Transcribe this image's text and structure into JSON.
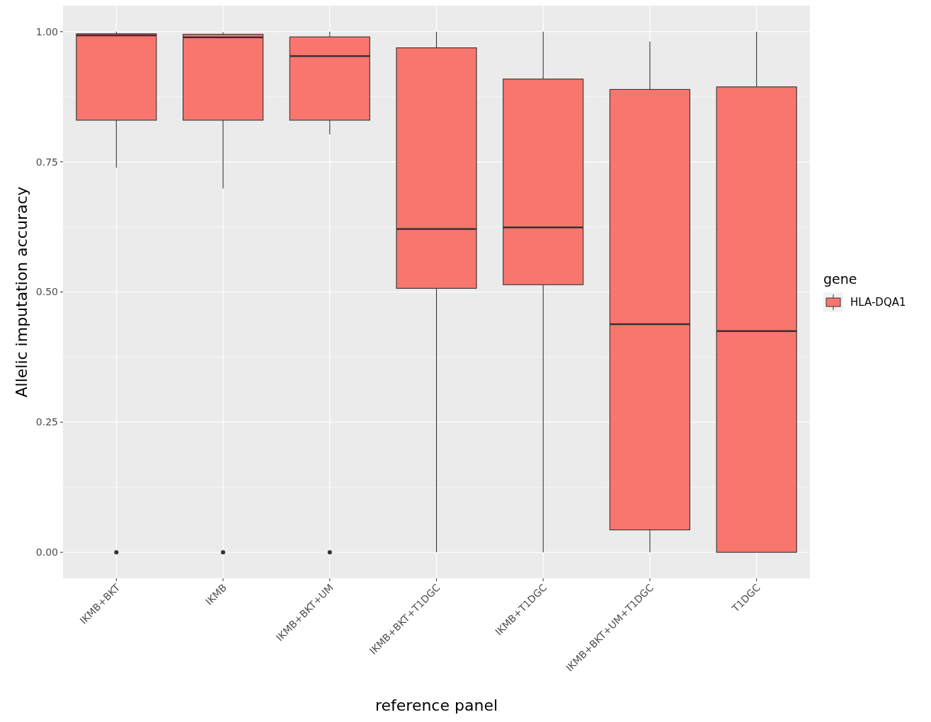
{
  "chart_data": {
    "type": "box",
    "xlabel": "reference panel",
    "ylabel": "Allelic imputation accuracy",
    "legend_title": "gene",
    "legend": "right",
    "grid": true,
    "categories": [
      "IKMB+BKT",
      "IKMB",
      "IKMB+BKT+UM",
      "IKMB+BKT+T1DGC",
      "IKMB+T1DGC",
      "IKMB+BKT+UM+T1DGC",
      "T1DGC"
    ],
    "ylim": [
      -0.05,
      1.05
    ],
    "yticks": [
      {
        "value": 0,
        "label": "0.00"
      },
      {
        "value": 0.25,
        "label": "0.25"
      },
      {
        "value": 0.5,
        "label": "0.50"
      },
      {
        "value": 0.75,
        "label": "0.75"
      },
      {
        "value": 1,
        "label": "1.00"
      }
    ],
    "series": [
      {
        "name": "HLA-DQA1",
        "color": "#f8766d",
        "boxes": [
          {
            "low": 0.739,
            "q1": 0.83,
            "median": 0.993,
            "q3": 0.996,
            "high": 1.0,
            "outliers": [
              0
            ]
          },
          {
            "low": 0.699,
            "q1": 0.83,
            "median": 0.989,
            "q3": 0.995,
            "high": 0.999,
            "outliers": [
              0
            ]
          },
          {
            "low": 0.803,
            "q1": 0.83,
            "median": 0.953,
            "q3": 0.99,
            "high": 1.0,
            "outliers": [
              0
            ]
          },
          {
            "low": 0,
            "q1": 0.507,
            "median": 0.621,
            "q3": 0.969,
            "high": 1.0
          },
          {
            "low": 0,
            "q1": 0.514,
            "median": 0.624,
            "q3": 0.909,
            "high": 1.0
          },
          {
            "low": 0,
            "q1": 0.043,
            "median": 0.438,
            "q3": 0.889,
            "high": 0.981
          },
          {
            "low": 0,
            "q1": 0,
            "median": 0.425,
            "q3": 0.894,
            "high": 1.0
          }
        ]
      }
    ]
  }
}
